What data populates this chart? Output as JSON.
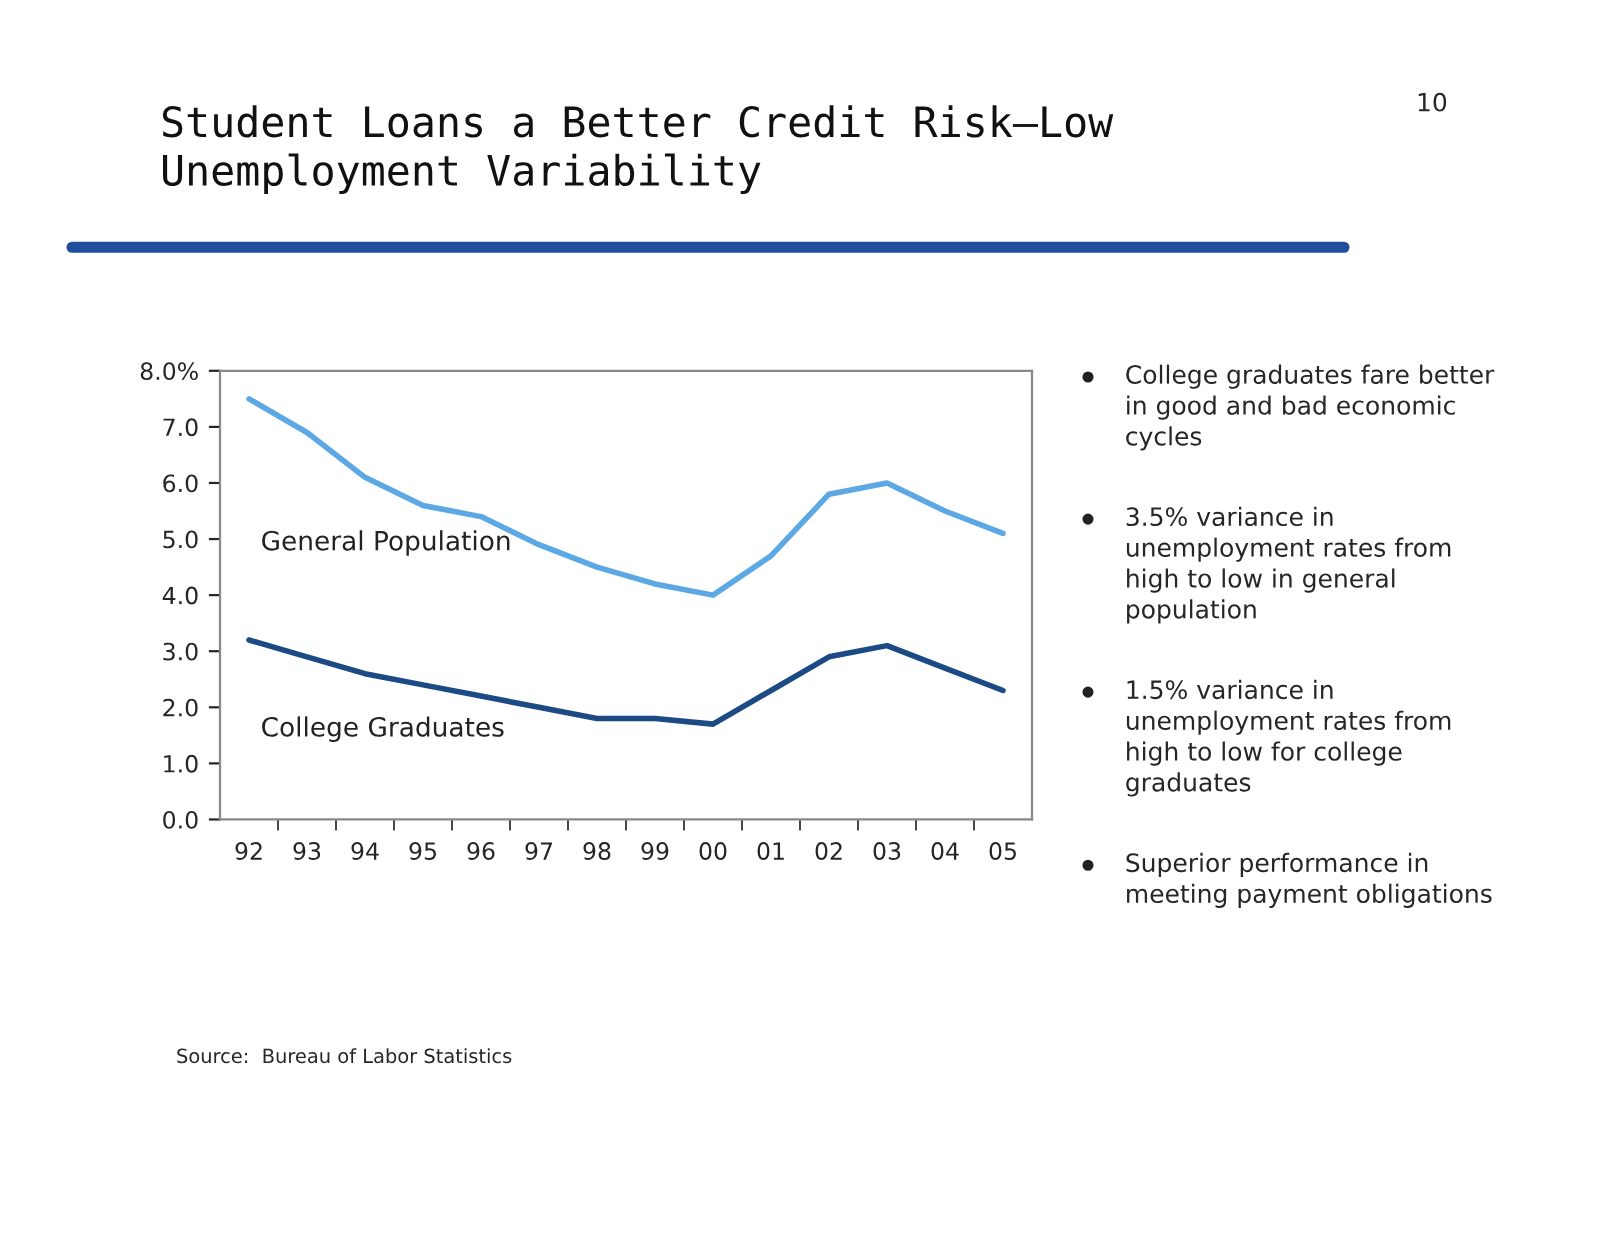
{
  "chart_data": {
    "type": "line",
    "title": "Student Loans a Better Credit Risk—Low\nUnemployment Variability",
    "categories": [
      "92",
      "93",
      "94",
      "95",
      "96",
      "97",
      "98",
      "99",
      "00",
      "01",
      "02",
      "03",
      "04",
      "05"
    ],
    "series": [
      {
        "name": "General Population",
        "color": "#5ba8e4",
        "values": [
          7.5,
          6.9,
          6.1,
          5.6,
          5.4,
          4.9,
          4.5,
          4.2,
          4.0,
          4.7,
          5.8,
          6.0,
          5.5,
          5.1
        ]
      },
      {
        "name": "College Graduates",
        "color": "#1b4a85",
        "values": [
          3.2,
          2.9,
          2.6,
          2.4,
          2.2,
          2.0,
          1.8,
          1.8,
          1.7,
          2.3,
          2.9,
          3.1,
          2.7,
          2.3
        ]
      }
    ],
    "ylim": [
      0,
      8
    ],
    "yticks": [
      {
        "value": 0,
        "label": "0.0"
      },
      {
        "value": 1,
        "label": "1.0"
      },
      {
        "value": 2,
        "label": "2.0"
      },
      {
        "value": 3,
        "label": "3.0"
      },
      {
        "value": 4,
        "label": "4.0"
      },
      {
        "value": 5,
        "label": "5.0"
      },
      {
        "value": 6,
        "label": "6.0"
      },
      {
        "value": 7,
        "label": "7.0"
      },
      {
        "value": 8,
        "label": "8.0%"
      }
    ],
    "grid": false,
    "legend": false,
    "marker": "none",
    "line_style": "solid",
    "annotations": [
      "10",
      "College graduates fare better\nin good and bad economic\ncycles",
      "3.5% variance in\nunemployment rates from\nhigh to low in general\npopulation",
      "1.5% variance in\nunemployment rates from\nhigh to low for college\ngraduates",
      "Superior performance in\nmeeting payment obligations",
      "Source:  Bureau of Labor Statistics"
    ]
  }
}
